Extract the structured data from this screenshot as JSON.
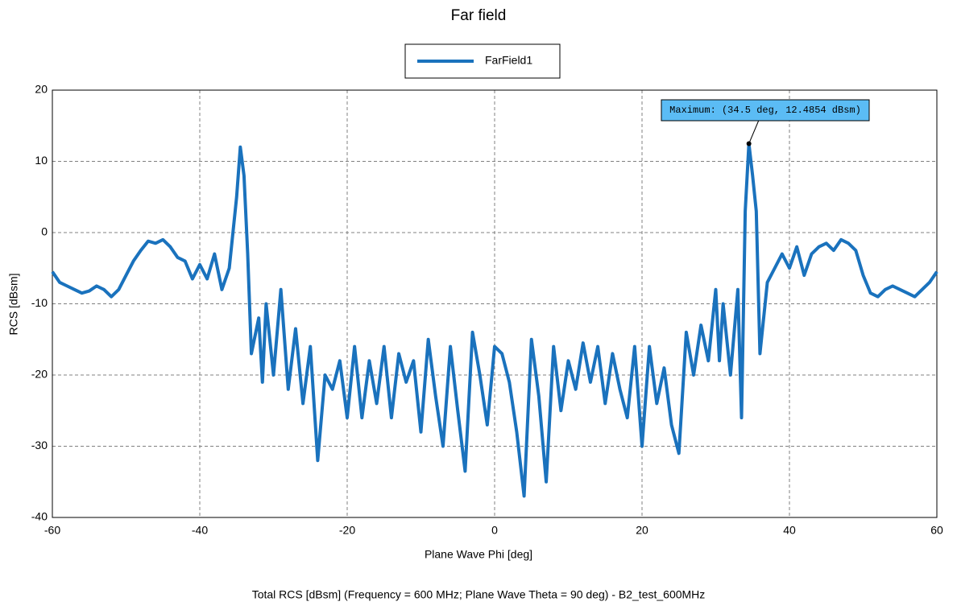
{
  "chart_data": {
    "type": "line",
    "title": "Far field",
    "xlabel": "Plane Wave Phi [deg]",
    "ylabel": "RCS [dBsm]",
    "footer": "Total RCS [dBsm] (Frequency = 600 MHz; Plane Wave Theta = 90 deg) - B2_test_600MHz",
    "x": [
      -60,
      -59,
      -58,
      -57,
      -56,
      -55,
      -54,
      -53,
      -52,
      -51,
      -50,
      -49,
      -48,
      -47,
      -46,
      -45,
      -44,
      -43,
      -42,
      -41,
      -40,
      -39,
      -38,
      -37,
      -36,
      -35,
      -34.5,
      -34,
      -33.5,
      -33,
      -32,
      -31.5,
      -31,
      -30,
      -29,
      -28,
      -27,
      -26,
      -25,
      -24,
      -23,
      -22,
      -21,
      -20,
      -19,
      -18,
      -17,
      -16,
      -15,
      -14,
      -13,
      -12,
      -11,
      -10,
      -9,
      -8,
      -7,
      -6,
      -5,
      -4,
      -3,
      -2,
      -1,
      0,
      1,
      2,
      3,
      4,
      5,
      6,
      7,
      8,
      9,
      10,
      11,
      12,
      13,
      14,
      15,
      16,
      17,
      18,
      19,
      20,
      21,
      22,
      23,
      24,
      25,
      26,
      27,
      28,
      29,
      30,
      30.5,
      31,
      32,
      33,
      33.5,
      34,
      34.5,
      35,
      35.5,
      36,
      37,
      38,
      39,
      40,
      41,
      42,
      43,
      44,
      45,
      46,
      47,
      48,
      49,
      50,
      51,
      52,
      53,
      54,
      55,
      56,
      57,
      58,
      59,
      60
    ],
    "series": [
      {
        "name": "FarField1",
        "color": "#1a72bd",
        "values": [
          -5.5,
          -7,
          -7.5,
          -8,
          -8.5,
          -8.2,
          -7.5,
          -8,
          -9,
          -8,
          -6,
          -4,
          -2.5,
          -1.2,
          -1.5,
          -1,
          -2,
          -3.5,
          -4,
          -6.5,
          -4.5,
          -6.5,
          -3,
          -8,
          -5,
          5,
          12,
          8,
          -3,
          -17,
          -12,
          -21,
          -10,
          -20,
          -8,
          -22,
          -13.5,
          -24,
          -16,
          -32,
          -20,
          -22,
          -18,
          -26,
          -16,
          -26,
          -18,
          -24,
          -16,
          -26,
          -17,
          -21,
          -18,
          -28,
          -15,
          -23,
          -30,
          -16,
          -25,
          -33.5,
          -14,
          -20,
          -27,
          -16,
          -17,
          -21,
          -28,
          -37,
          -15,
          -23,
          -35,
          -16,
          -25,
          -18,
          -22,
          -15.5,
          -21,
          -16,
          -24,
          -17,
          -22,
          -26,
          -16,
          -30,
          -16,
          -24,
          -19,
          -27,
          -31,
          -14,
          -20,
          -13,
          -18,
          -8,
          -18,
          -10,
          -20,
          -8,
          -26,
          3,
          12.4854,
          8,
          3,
          -17,
          -7,
          -5,
          -3,
          -5,
          -2,
          -6,
          -3,
          -2,
          -1.5,
          -2.5,
          -1,
          -1.5,
          -2.5,
          -6,
          -8.5,
          -9,
          -8,
          -7.5,
          -8,
          -8.5,
          -9,
          -8,
          -7,
          -5.5
        ]
      }
    ],
    "annotation": {
      "text": "Maximum: (34.5 deg, 12.4854 dBsm)",
      "x": 34.5,
      "y": 12.4854
    },
    "xlim": [
      -60,
      60
    ],
    "xticks": [
      -60,
      -40,
      -20,
      0,
      20,
      40,
      60
    ],
    "ylim": [
      -40,
      20
    ],
    "yticks": [
      -40,
      -30,
      -20,
      -10,
      0,
      10,
      20
    ],
    "grid": true
  }
}
